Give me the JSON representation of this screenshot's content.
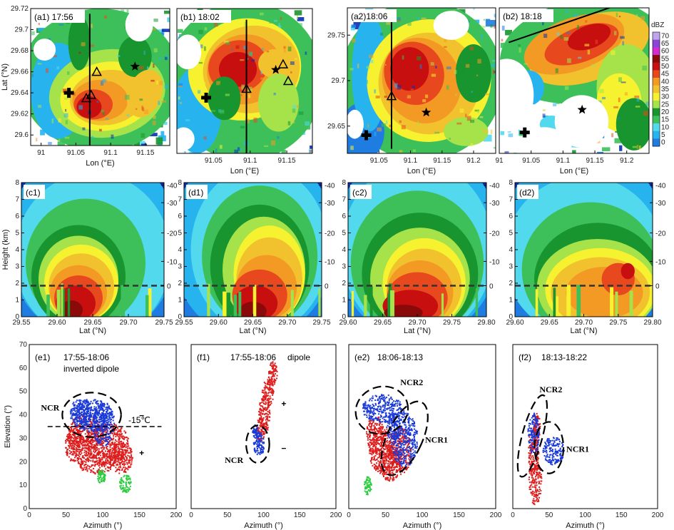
{
  "colors": {
    "scale": [
      "#0a2fb0",
      "#1f7ce0",
      "#27b4ee",
      "#53d9ee",
      "#3dc05a",
      "#18952e",
      "#a6e34a",
      "#f7f230",
      "#f2c12e",
      "#f29a24",
      "#e8481e",
      "#c80f10",
      "#8a0a0a",
      "#d22ad0",
      "#8a45d6",
      "#bfa5ee"
    ],
    "dipole_red": "#dd1c1c",
    "dipole_blue": "#1a3ad8",
    "dipole_green": "#2ecc40",
    "plus_sign": "#b3242a",
    "minus_sign": "#3553c9"
  },
  "colorbar": {
    "unit": "dBZ",
    "labels": [
      "70",
      "65",
      "60",
      "55",
      "50",
      "45",
      "40",
      "35",
      "30",
      "25",
      "20",
      "15",
      "10",
      "5",
      "0"
    ]
  },
  "chart_data": [
    {
      "type": "heatmap",
      "id": "a1",
      "title": "(a1) 17:56",
      "xlabel": "Lon (°E)",
      "ylabel": "Lat (°N)",
      "xlim": [
        90.985,
        91.185
      ],
      "ylim": [
        29.59,
        29.72
      ],
      "xticks": [
        "91",
        "91.05",
        "91.1",
        "91.15"
      ],
      "xtick_values": [
        91.0,
        91.05,
        91.1,
        91.15
      ],
      "yticks": [
        "29.6",
        "29.62",
        "29.64",
        "29.66",
        "29.68",
        "29.7",
        "29.72"
      ],
      "ytick_values": [
        29.6,
        29.62,
        29.64,
        29.66,
        29.68,
        29.7,
        29.72
      ],
      "section_line": [
        [
          91.07,
          29.59
        ],
        [
          91.07,
          29.715
        ]
      ],
      "star": [
        91.135,
        29.665
      ],
      "cross": [
        91.04,
        29.64
      ],
      "triangles": [
        [
          91.065,
          29.635
        ],
        [
          91.072,
          29.638
        ],
        [
          91.08,
          29.66
        ]
      ]
    },
    {
      "type": "heatmap",
      "id": "b1",
      "title": "(b1) 18:02",
      "xlabel": "Lon (°E)",
      "ylabel": "",
      "xlim": [
        91.0,
        91.185
      ],
      "ylim": [
        29.59,
        29.72
      ],
      "xticks": [
        "91.05",
        "91.1",
        "91.15"
      ],
      "xtick_values": [
        91.05,
        91.1,
        91.15
      ],
      "section_line": [
        [
          91.095,
          29.59
        ],
        [
          91.095,
          29.71
        ]
      ],
      "star": [
        91.135,
        29.665
      ],
      "cross": [
        91.04,
        29.64
      ],
      "triangles": [
        [
          91.095,
          29.648
        ],
        [
          91.145,
          29.67
        ],
        [
          91.152,
          29.655
        ]
      ]
    },
    {
      "type": "heatmap",
      "id": "a2",
      "title": "(a2)18:06",
      "xlabel": "Lon (°E)",
      "ylabel": "",
      "xlim": [
        91.0,
        91.235
      ],
      "ylim": [
        29.62,
        29.78
      ],
      "xticks": [
        "91.05",
        "91.1",
        "91.15",
        "91.2"
      ],
      "xtick_values": [
        91.05,
        91.1,
        91.15,
        91.2
      ],
      "yticks": [
        "29.65",
        "29.7",
        "29.75"
      ],
      "ytick_values": [
        29.65,
        29.7,
        29.75
      ],
      "section_line": [
        [
          91.07,
          29.625
        ],
        [
          91.07,
          29.77
        ]
      ],
      "star": [
        91.125,
        29.665
      ],
      "cross": [
        91.03,
        29.64
      ],
      "triangles": [
        [
          91.07,
          29.683
        ]
      ]
    },
    {
      "type": "heatmap",
      "id": "b2",
      "title": "(b2) 18:18",
      "xlabel": "Lon (°E)",
      "ylabel": "",
      "xlim": [
        91.0,
        91.235
      ],
      "ylim": [
        29.62,
        29.78
      ],
      "xticks": [
        "91",
        "91.05",
        "91.1",
        "91.15",
        "91.2"
      ],
      "xtick_values": [
        91.0,
        91.05,
        91.1,
        91.15,
        91.2
      ],
      "section_line": [
        [
          91.015,
          29.742
        ],
        [
          91.185,
          29.783
        ]
      ],
      "star": [
        91.13,
        29.668
      ],
      "cross": [
        91.04,
        29.643
      ],
      "triangles": []
    },
    {
      "type": "heatmap",
      "id": "c1",
      "title": "(c1)",
      "xlabel": "Lat (°N)",
      "ylabel": "Height (km)",
      "xlim": [
        29.55,
        29.75
      ],
      "ylim": [
        0,
        8
      ],
      "xticks": [
        "29.55",
        "29.60",
        "29.65",
        "29.70",
        "29.75"
      ],
      "xtick_values": [
        29.55,
        29.6,
        29.65,
        29.7,
        29.75
      ],
      "yticks": [
        "0",
        "1",
        "2",
        "3",
        "4",
        "5",
        "6",
        "7",
        "8"
      ],
      "temp_ticks": [
        "-40",
        "-30",
        "-20",
        "-10",
        "0"
      ],
      "temp_tick_heights": [
        7.85,
        6.8,
        5.0,
        3.3,
        1.85
      ],
      "zero_degree_height_km": 1.85
    },
    {
      "type": "heatmap",
      "id": "d1",
      "title": "(d1)",
      "xlabel": "Lat (°N)",
      "ylabel": "",
      "xlim": [
        29.55,
        29.75
      ],
      "ylim": [
        0,
        8
      ],
      "xticks": [
        "29.55",
        "29.60",
        "29.65",
        "29.70",
        "29.75"
      ],
      "xtick_values": [
        29.55,
        29.6,
        29.65,
        29.7,
        29.75
      ],
      "yticks": [
        "0",
        "1",
        "2",
        "3",
        "4",
        "5",
        "6",
        "7",
        "8"
      ],
      "temp_ticks": [
        "-40",
        "-30",
        "-20",
        "-10",
        "0"
      ],
      "temp_tick_heights": [
        7.85,
        6.8,
        5.0,
        3.3,
        1.85
      ],
      "zero_degree_height_km": 1.85
    },
    {
      "type": "heatmap",
      "id": "c2",
      "title": "(c2)",
      "xlabel": "Lat (°N)",
      "ylabel": "",
      "xlim": [
        29.6,
        29.8
      ],
      "ylim": [
        0,
        8
      ],
      "xticks": [
        "29.60",
        "29.65",
        "29.70",
        "29.75",
        "29.80"
      ],
      "xtick_values": [
        29.6,
        29.65,
        29.7,
        29.75,
        29.8
      ],
      "yticks": [
        "0",
        "1",
        "2",
        "3",
        "4",
        "5",
        "6",
        "7",
        "8"
      ],
      "temp_ticks": [
        "-40",
        "-30",
        "-20",
        "-10",
        "0"
      ],
      "temp_tick_heights": [
        7.85,
        6.8,
        5.0,
        3.3,
        1.85
      ],
      "zero_degree_height_km": 1.85
    },
    {
      "type": "heatmap",
      "id": "d2",
      "title": "(d2)",
      "xlabel": "Lat (°N)",
      "ylabel": "",
      "xlim": [
        29.6,
        29.8
      ],
      "ylim": [
        0,
        8
      ],
      "xticks": [
        "29.60",
        "29.65",
        "29.70",
        "29.75",
        "29.80"
      ],
      "xtick_values": [
        29.6,
        29.65,
        29.7,
        29.75,
        29.8
      ],
      "yticks": [
        "0",
        "1",
        "2",
        "3",
        "4",
        "5",
        "6",
        "7",
        "8"
      ],
      "temp_ticks": [
        "-40",
        "-30",
        "-20",
        "-10",
        "0"
      ],
      "temp_tick_heights": [
        7.85,
        6.8,
        5.0,
        3.3,
        1.85
      ],
      "zero_degree_height_km": 1.85
    },
    {
      "type": "scatter",
      "id": "e1",
      "title": "(e1)",
      "time": "17:55-18:06",
      "subtitle": "inverted dipole",
      "xlabel": "Azimuth (°)",
      "ylabel": "Elevation (°)",
      "xlim": [
        0,
        200
      ],
      "ylim": [
        0,
        70
      ],
      "xticks": [
        "0",
        "50",
        "100",
        "150",
        "200"
      ],
      "yticks": [
        "0",
        "10",
        "20",
        "30",
        "40",
        "50",
        "60",
        "70"
      ],
      "isotherm_label": "-15℃",
      "isotherm_elevation": 35,
      "regions": [
        {
          "label": "NCR",
          "center": [
            85,
            40
          ],
          "radii": [
            40,
            9.5
          ]
        }
      ],
      "charge_signs": [
        {
          "sign": "−",
          "az": 153,
          "el": 41,
          "color": "blue"
        },
        {
          "sign": "+",
          "az": 153,
          "el": 25,
          "color": "red"
        }
      ],
      "series": [
        {
          "name": "red",
          "blobs": [
            [
              75,
              32,
              25,
              8
            ],
            [
              105,
              28,
              30,
              9
            ],
            [
              125,
              22,
              15,
              7
            ],
            [
              90,
              20,
              25,
              5
            ],
            [
              60,
              28,
              12,
              8
            ]
          ]
        },
        {
          "name": "blue",
          "blobs": [
            [
              85,
              40,
              30,
              7
            ],
            [
              100,
              36,
              15,
              9
            ],
            [
              70,
              42,
              15,
              5
            ]
          ]
        },
        {
          "name": "green",
          "blobs": [
            [
              97,
              14,
              6,
              3
            ],
            [
              130,
              11,
              8,
              4
            ]
          ]
        }
      ]
    },
    {
      "type": "scatter",
      "id": "f1",
      "title": "(f1)",
      "time": "17:55-18:06",
      "subtitle": "dipole",
      "xlabel": "Azimuth (°)",
      "ylabel": "",
      "xlim": [
        0,
        200
      ],
      "ylim": [
        0,
        70
      ],
      "xticks": [
        "0",
        "50",
        "100",
        "150",
        "200"
      ],
      "regions": [
        {
          "label": "NCR",
          "center": [
            92,
            27.5
          ],
          "radii": [
            16,
            8
          ]
        }
      ],
      "charge_signs": [
        {
          "sign": "+",
          "az": 128,
          "el": 46,
          "color": "red"
        },
        {
          "sign": "−",
          "az": 128,
          "el": 27,
          "color": "blue"
        }
      ],
      "series": [
        {
          "name": "red",
          "blobs": [
            [
              105,
              50,
              8,
              7
            ],
            [
              112,
              58,
              6,
              5
            ],
            [
              100,
              40,
              8,
              8
            ],
            [
              95,
              34,
              6,
              5
            ]
          ]
        },
        {
          "name": "blue",
          "blobs": [
            [
              93,
              28,
              8,
              5
            ],
            [
              88,
              33,
              4,
              3
            ]
          ]
        },
        {
          "name": "green",
          "blobs": []
        }
      ]
    },
    {
      "type": "scatter",
      "id": "e2",
      "title": "(e2)",
      "time": "18:06-18:13",
      "subtitle": "",
      "xlabel": "Azimuth (°)",
      "ylabel": "",
      "xlim": [
        0,
        200
      ],
      "ylim": [
        0,
        70
      ],
      "xticks": [
        "0",
        "50",
        "100",
        "150",
        "200"
      ],
      "regions": [
        {
          "label": "NCR2",
          "center": [
            45,
            42
          ],
          "radii": [
            36,
            10
          ],
          "angle": -18
        },
        {
          "label": "NCR1",
          "center": [
            76,
            30
          ],
          "radii": [
            24,
            17
          ],
          "angle": 25
        }
      ],
      "charge_signs": [],
      "series": [
        {
          "name": "red",
          "blobs": [
            [
              45,
              25,
              18,
              10
            ],
            [
              35,
              32,
              12,
              8
            ],
            [
              55,
              20,
              15,
              8
            ],
            [
              70,
              25,
              15,
              10
            ]
          ]
        },
        {
          "name": "blue",
          "blobs": [
            [
              45,
              43,
              28,
              6
            ],
            [
              75,
              30,
              18,
              12
            ],
            [
              60,
              35,
              10,
              6
            ]
          ]
        },
        {
          "name": "green",
          "blobs": [
            [
              25,
              10,
              5,
              4
            ]
          ]
        }
      ]
    },
    {
      "type": "scatter",
      "id": "f2",
      "title": "(f2)",
      "time": "18:13-18:22",
      "subtitle": "",
      "xlabel": "Azimuth (°)",
      "ylabel": "",
      "xlim": [
        0,
        200
      ],
      "ylim": [
        0,
        70
      ],
      "xticks": [
        "0",
        "50",
        "100",
        "150",
        "200"
      ],
      "regions": [
        {
          "label": "NCR2",
          "center": [
            27,
            31
          ],
          "radii": [
            14,
            18
          ],
          "angle": 15
        },
        {
          "label": "NCR1",
          "center": [
            50,
            26
          ],
          "radii": [
            20,
            11
          ],
          "angle": 0
        }
      ],
      "charge_signs": [],
      "series": [
        {
          "name": "red",
          "blobs": [
            [
              30,
              12,
              9,
              10
            ],
            [
              28,
              25,
              8,
              10
            ],
            [
              32,
              35,
              5,
              6
            ]
          ]
        },
        {
          "name": "blue",
          "blobs": [
            [
              28,
              32,
              8,
              9
            ],
            [
              55,
              25,
              15,
              6
            ]
          ]
        },
        {
          "name": "green",
          "blobs": []
        }
      ]
    }
  ]
}
